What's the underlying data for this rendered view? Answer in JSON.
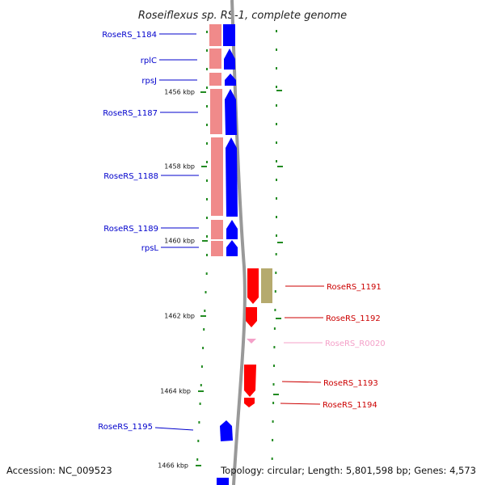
{
  "title": "Roseiflexus sp. RS-1, complete genome",
  "accession": "Accession: NC_009523",
  "summary": "Topology: circular; Length: 5,801,598 bp; Genes: 4,573",
  "colors": {
    "forward_gene": "#0000ff",
    "reverse_gene": "#ff0000",
    "cds_forward": "#f08a8a",
    "cds_reverse": "#b5aa6e",
    "rna": "#f4a0c8",
    "backbone": "#999999",
    "tick": "#228b22",
    "left_label": "#0000cc",
    "right_label": "#cc0000"
  },
  "scale_labels": [
    "1456 kbp",
    "1458 kbp",
    "1460 kbp",
    "1462 kbp",
    "1464 kbp",
    "1466 kbp"
  ],
  "genes": [
    {
      "name": "RoseRS_1184",
      "strand": "forward"
    },
    {
      "name": "rplC",
      "strand": "forward"
    },
    {
      "name": "rpsJ",
      "strand": "forward"
    },
    {
      "name": "RoseRS_1187",
      "strand": "forward"
    },
    {
      "name": "RoseRS_1188",
      "strand": "forward"
    },
    {
      "name": "RoseRS_1189",
      "strand": "forward"
    },
    {
      "name": "rpsL",
      "strand": "forward"
    },
    {
      "name": "RoseRS_1191",
      "strand": "reverse"
    },
    {
      "name": "RoseRS_1192",
      "strand": "reverse"
    },
    {
      "name": "RoseRS_R0020",
      "strand": "reverse"
    },
    {
      "name": "RoseRS_1193",
      "strand": "reverse"
    },
    {
      "name": "RoseRS_1194",
      "strand": "reverse"
    },
    {
      "name": "RoseRS_1195",
      "strand": "forward"
    }
  ]
}
